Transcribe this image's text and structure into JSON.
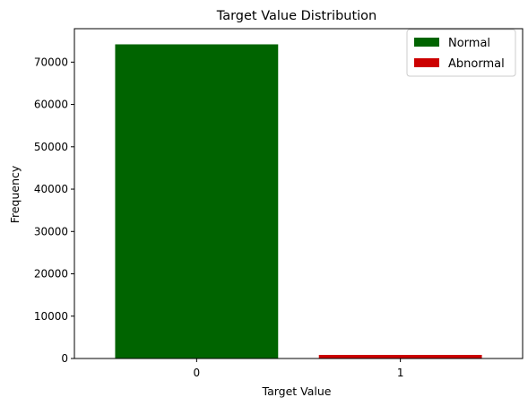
{
  "chart_data": {
    "type": "bar",
    "title": "Target Value Distribution",
    "xlabel": "Target Value",
    "ylabel": "Frequency",
    "categories": [
      "0",
      "1"
    ],
    "values": [
      74200,
      850
    ],
    "bar_colors": [
      "#006400",
      "#cc0000"
    ],
    "ylim": [
      0,
      77900
    ],
    "yticks": [
      0,
      10000,
      20000,
      30000,
      40000,
      50000,
      60000,
      70000
    ],
    "grid": false,
    "legend": {
      "placement": "top-right",
      "entries": [
        {
          "label": "Normal",
          "color": "#006400"
        },
        {
          "label": "Abnormal",
          "color": "#cc0000"
        }
      ]
    }
  }
}
